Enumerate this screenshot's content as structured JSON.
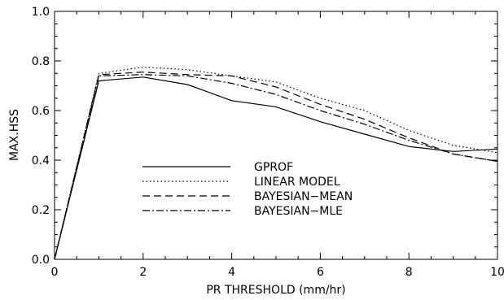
{
  "chart_data": {
    "type": "line",
    "title": "",
    "xlabel": "PR THRESHOLD (mm/hr)",
    "ylabel": "MAX.HSS",
    "xlim": [
      0,
      10
    ],
    "ylim": [
      0,
      1
    ],
    "x_ticks": [
      "0",
      "2",
      "4",
      "6",
      "8",
      "10"
    ],
    "y_ticks": [
      "0.0",
      "0.2",
      "0.4",
      "0.6",
      "0.8",
      "1.0"
    ],
    "grid": false,
    "legend_position": "center-left",
    "x": [
      0,
      1,
      2,
      3,
      4,
      5,
      6,
      7,
      8,
      9,
      10
    ],
    "series": [
      {
        "name": "GPROF",
        "dash": "solid",
        "values": [
          0.0,
          0.72,
          0.735,
          0.705,
          0.64,
          0.615,
          0.555,
          0.505,
          0.455,
          0.435,
          0.445
        ]
      },
      {
        "name": "LINEAR MODEL",
        "dash": "dotted",
        "values": [
          0.0,
          0.75,
          0.775,
          0.765,
          0.74,
          0.715,
          0.65,
          0.6,
          0.52,
          0.46,
          0.43
        ]
      },
      {
        "name": "BAYESIAN−MEAN",
        "dash": "dashed",
        "values": [
          0.0,
          0.745,
          0.755,
          0.745,
          0.74,
          0.695,
          0.625,
          0.565,
          0.49,
          0.425,
          0.395
        ]
      },
      {
        "name": "BAYESIAN−MLE",
        "dash": "dashdot",
        "values": [
          0.0,
          0.74,
          0.745,
          0.74,
          0.71,
          0.665,
          0.6,
          0.545,
          0.48,
          0.425,
          0.395
        ]
      }
    ]
  }
}
